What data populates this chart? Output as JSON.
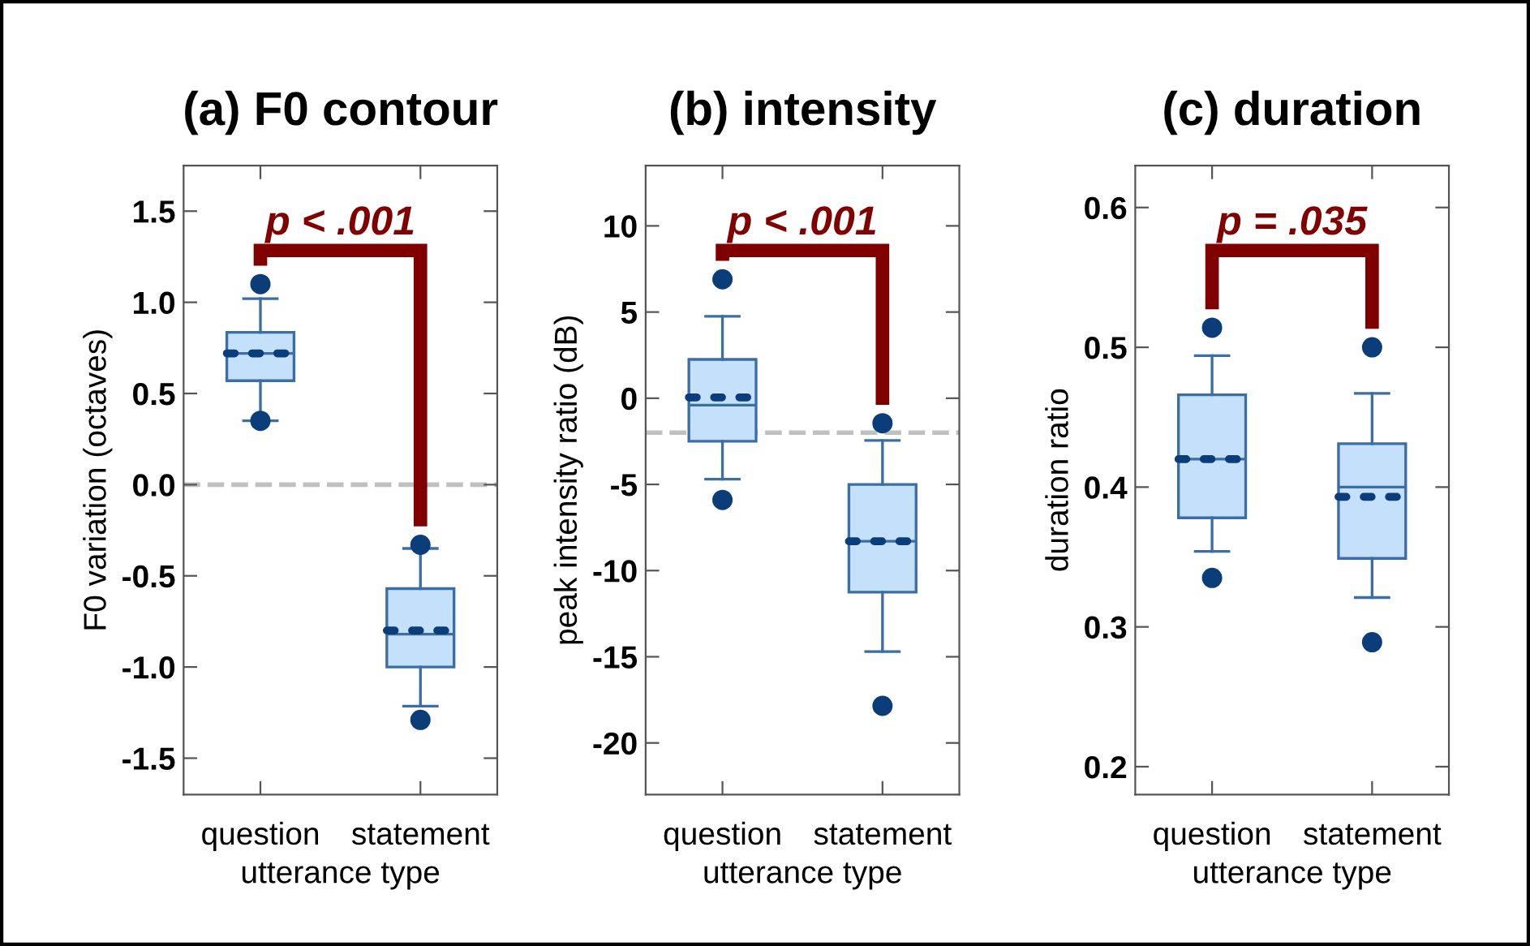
{
  "chart_data": [
    {
      "type": "box",
      "title": "(a) F0 contour",
      "xlabel": "utterance type",
      "ylabel": "F0 variation (octaves)",
      "categories": [
        "question",
        "statement"
      ],
      "color": "#c5e0fa",
      "boxes": [
        {
          "low": 0.35,
          "q1": 0.57,
          "median": 0.72,
          "q3": 0.835,
          "high": 1.02,
          "mean": 0.72,
          "outliers": [
            1.1,
            0.35
          ]
        },
        {
          "low": -1.215,
          "q1": -1.0,
          "median": -0.82,
          "q3": -0.57,
          "high": -0.35,
          "mean": -0.8,
          "outliers": [
            -0.33,
            -1.29
          ]
        }
      ],
      "ylim": [
        -1.7,
        1.75
      ],
      "yticks": [
        {
          "value": -1.5,
          "label": "-1.5"
        },
        {
          "value": -1.0,
          "label": "-1.0"
        },
        {
          "value": -0.5,
          "label": "-0.5"
        },
        {
          "value": 0.0,
          "label": "0.0"
        },
        {
          "value": 0.5,
          "label": "0.5"
        },
        {
          "value": 1.0,
          "label": "1.0"
        },
        {
          "value": 1.5,
          "label": "1.5"
        }
      ],
      "ref_lines": [
        {
          "axis": "y",
          "value": 0,
          "color": "#c0c0c0",
          "line_style": "dashed"
        }
      ],
      "annotations": [
        "p < .001"
      ]
    },
    {
      "type": "box",
      "title": "(b) intensity",
      "xlabel": "utterance type",
      "ylabel": "peak intensity ratio (dB)",
      "categories": [
        "question",
        "statement"
      ],
      "color": "#c5e0fa",
      "boxes": [
        {
          "low": -4.7,
          "q1": -2.5,
          "median": -0.4,
          "q3": 2.25,
          "high": 4.75,
          "mean": 0.05,
          "outliers": [
            6.9,
            -5.9
          ]
        },
        {
          "low": -14.7,
          "q1": -11.25,
          "median": -8.3,
          "q3": -5.0,
          "high": -2.45,
          "mean": -8.3,
          "outliers": [
            -1.45,
            -17.85
          ]
        }
      ],
      "ylim": [
        -23,
        13.5
      ],
      "yticks": [
        {
          "value": -20,
          "label": "-20"
        },
        {
          "value": -15,
          "label": "-15"
        },
        {
          "value": -10,
          "label": "-10"
        },
        {
          "value": -5,
          "label": "-5"
        },
        0,
        5,
        10
      ],
      "ref_lines": [
        {
          "axis": "y",
          "value": -2,
          "color": "#c0c0c0",
          "line_style": "dashed"
        }
      ],
      "annotations": [
        "p < .001"
      ]
    },
    {
      "type": "box",
      "title": "(c) duration",
      "xlabel": "utterance type",
      "ylabel": "duration ratio",
      "categories": [
        "question",
        "statement"
      ],
      "color": "#c5e0fa",
      "boxes": [
        {
          "low": 0.354,
          "q1": 0.378,
          "median": 0.42,
          "q3": 0.466,
          "high": 0.494,
          "mean": 0.42,
          "outliers": [
            0.514,
            0.335
          ]
        },
        {
          "low": 0.321,
          "q1": 0.349,
          "median": 0.4,
          "q3": 0.431,
          "high": 0.467,
          "mean": 0.393,
          "outliers": [
            0.5,
            0.289
          ]
        }
      ],
      "ylim": [
        0.18,
        0.63
      ],
      "yticks": [
        0.2,
        0.3,
        0.4,
        0.5,
        0.6
      ],
      "annotations": [
        "p = .035"
      ]
    }
  ]
}
